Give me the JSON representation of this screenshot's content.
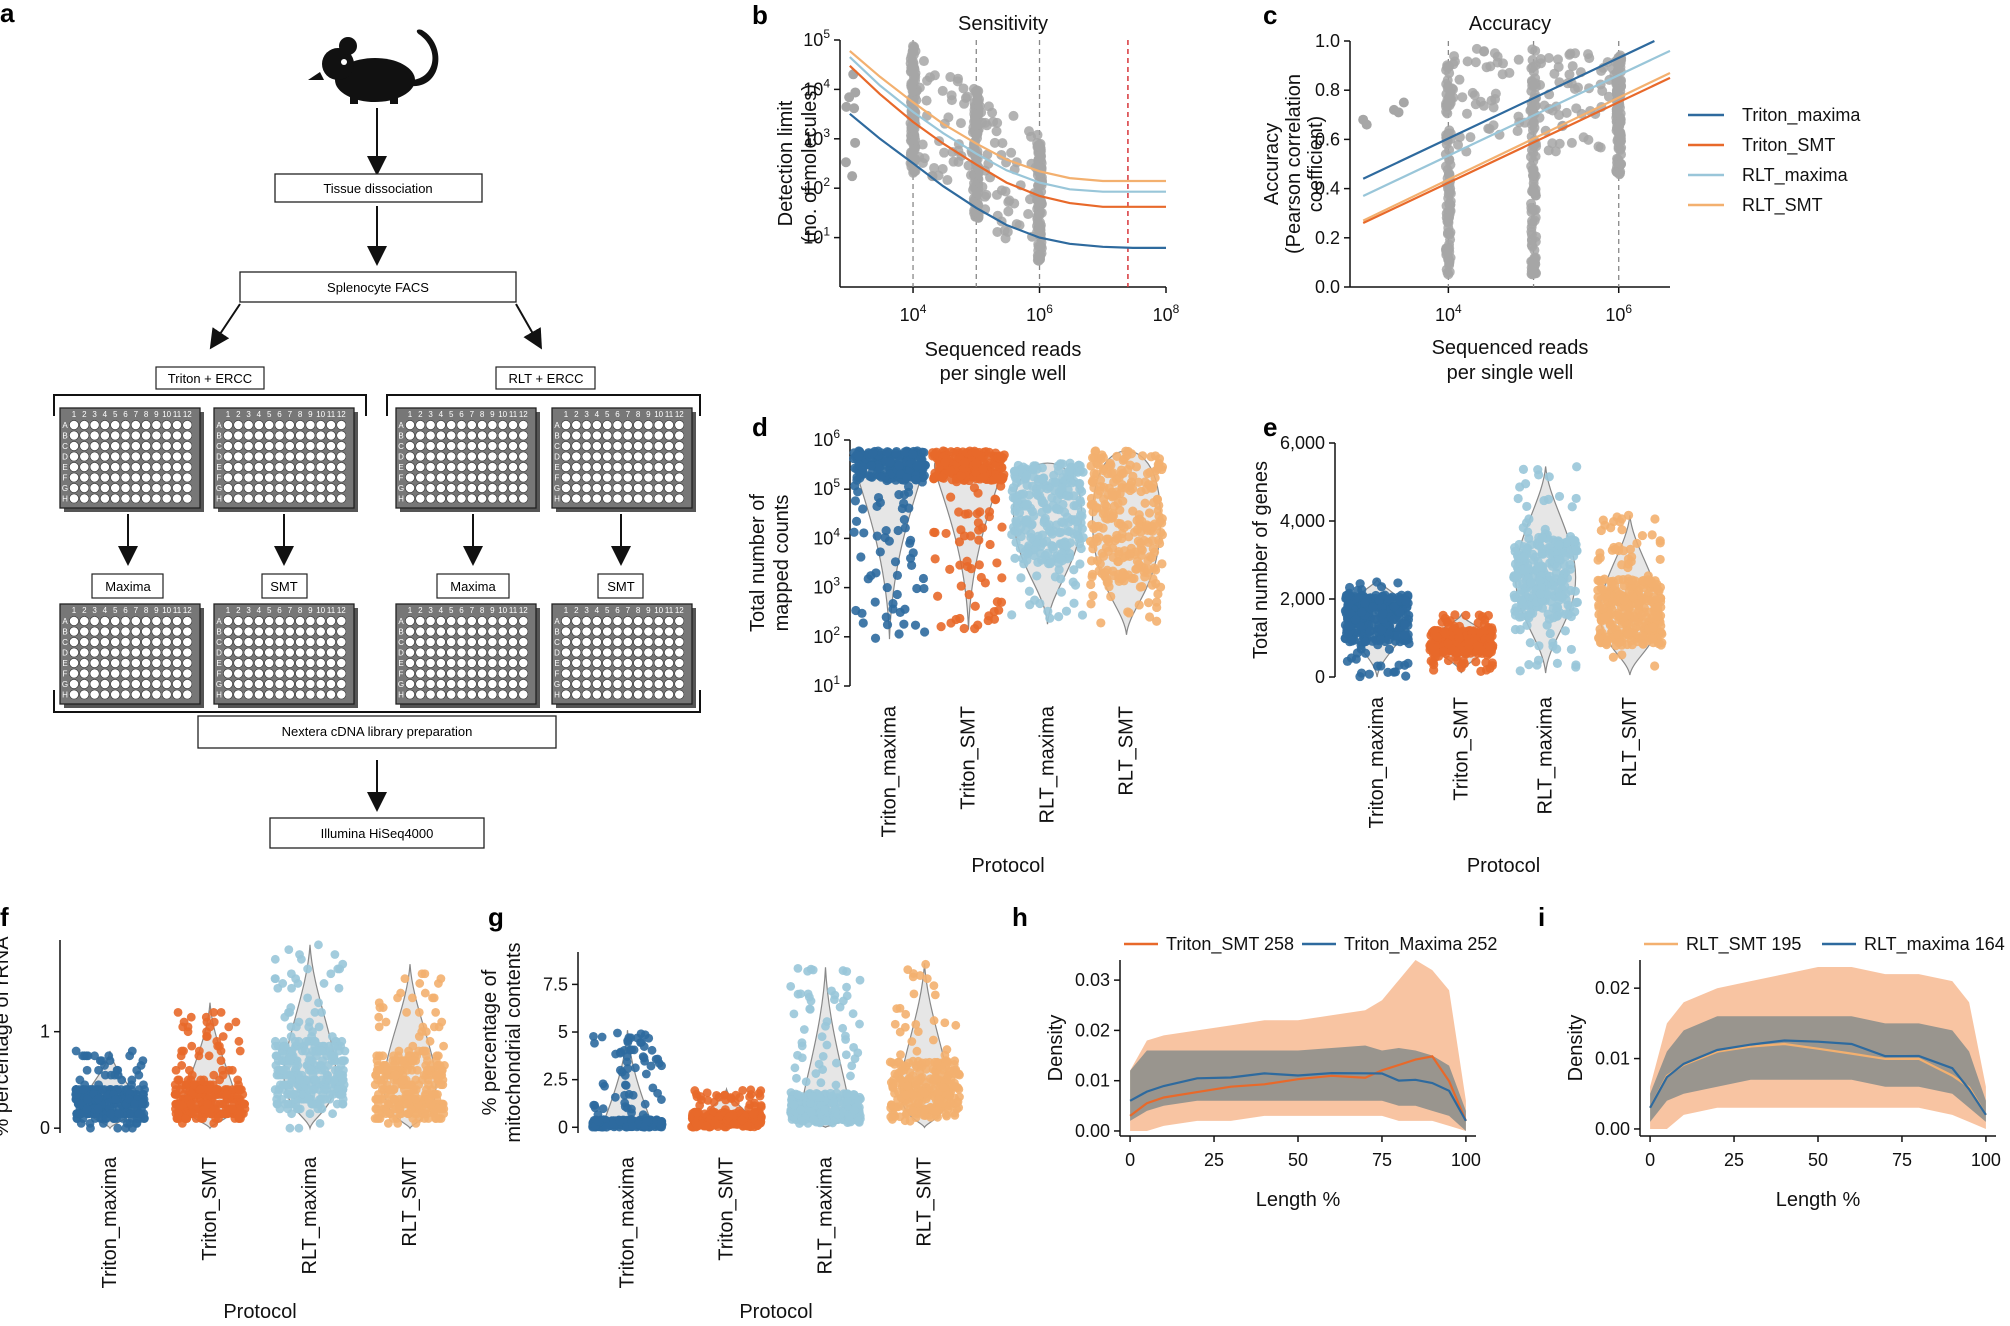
{
  "figure": {
    "panel_labels": {
      "a": "a",
      "b": "b",
      "c": "c",
      "d": "d",
      "e": "e",
      "f": "f",
      "g": "g",
      "h": "h",
      "i": "i"
    }
  },
  "workflow": {
    "steps": {
      "dissociation": "Tissue dissociation",
      "facs": "Splenocyte FACS",
      "triton": "Triton + ERCC",
      "rlt": "RLT + ERCC",
      "maxima": "Maxima",
      "smt": "SMT",
      "nextera": "Nextera cDNA library preparation",
      "hiseq": "Illumina HiSeq4000"
    },
    "plate_rows": [
      "A",
      "B",
      "C",
      "D",
      "E",
      "F",
      "G",
      "H"
    ],
    "plate_cols": [
      "1",
      "2",
      "3",
      "4",
      "5",
      "6",
      "7",
      "8",
      "9",
      "10",
      "11",
      "12"
    ]
  },
  "colors": {
    "Triton_maxima": "#2e6a9e",
    "Triton_SMT": "#e8692a",
    "RLT_maxima": "#99c6d9",
    "RLT_SMT": "#f3b06f",
    "grey_points": "#a6a6a6",
    "red_line": "#d8363a"
  },
  "chart_data": [
    {
      "id": "b",
      "type": "scatter",
      "title": "Sensitivity",
      "xlabel": [
        "Sequenced reads",
        "per single well"
      ],
      "ylabel": [
        "Detection limit",
        "(no. of molecules)"
      ],
      "x_scale": "log",
      "y_scale": "log",
      "xlim": [
        700,
        100000000
      ],
      "ylim": [
        1,
        100000
      ],
      "xticks": [
        {
          "v": 10000,
          "m": "10",
          "e": "4"
        },
        {
          "v": 1000000,
          "m": "10",
          "e": "6"
        },
        {
          "v": 100000000,
          "m": "10",
          "e": "8"
        }
      ],
      "yticks": [
        {
          "v": 10,
          "m": "10",
          "e": "1"
        },
        {
          "v": 100,
          "m": "10",
          "e": "2"
        },
        {
          "v": 1000,
          "m": "10",
          "e": "3"
        },
        {
          "v": 10000,
          "m": "10",
          "e": "4"
        },
        {
          "v": 100000,
          "m": "10",
          "e": "5"
        }
      ],
      "vlines": [
        10000,
        100000,
        1000000
      ],
      "red_vline": 25000000,
      "series": [
        {
          "name": "Triton_maxima",
          "x": [
            1000,
            3000,
            10000,
            30000,
            100000,
            300000,
            1000000,
            3000000,
            10000000,
            30000000,
            100000000
          ],
          "y": [
            3200,
            1000,
            320,
            110,
            40,
            18,
            10,
            7.5,
            6.5,
            6.2,
            6.2
          ]
        },
        {
          "name": "Triton_SMT",
          "x": [
            1000,
            3000,
            10000,
            30000,
            100000,
            300000,
            1000000,
            3000000,
            10000000,
            30000000,
            100000000
          ],
          "y": [
            30000,
            8000,
            2200,
            800,
            300,
            130,
            70,
            50,
            42,
            42,
            42
          ]
        },
        {
          "name": "RLT_maxima",
          "x": [
            1000,
            3000,
            10000,
            30000,
            100000,
            300000,
            1000000,
            3000000,
            10000000,
            30000000,
            100000000
          ],
          "y": [
            45000,
            12000,
            3500,
            1300,
            500,
            230,
            130,
            95,
            85,
            85,
            85
          ]
        },
        {
          "name": "RLT_SMT",
          "x": [
            1000,
            3000,
            10000,
            30000,
            100000,
            300000,
            1000000,
            3000000,
            10000000,
            30000000,
            100000000
          ],
          "y": [
            60000,
            18000,
            5500,
            2000,
            800,
            380,
            220,
            160,
            140,
            140,
            140
          ]
        }
      ]
    },
    {
      "id": "c",
      "type": "scatter",
      "title": "Accuracy",
      "xlabel": [
        "Sequenced reads",
        "per single well"
      ],
      "ylabel": [
        "Accuracy",
        "(Pearson correlation",
        "coefficient)"
      ],
      "x_scale": "log",
      "xlim": [
        700,
        4000000
      ],
      "ylim": [
        0,
        1.0
      ],
      "xticks": [
        {
          "v": 10000,
          "m": "10",
          "e": "4"
        },
        {
          "v": 1000000,
          "m": "10",
          "e": "6"
        }
      ],
      "yticks": [
        0.0,
        0.2,
        0.4,
        0.6,
        0.8,
        1.0
      ],
      "ytick_labels": [
        "0.0",
        "0.2",
        "0.4",
        "0.6",
        "0.8",
        "1.0"
      ],
      "vlines": [
        10000,
        100000,
        1000000
      ],
      "series": [
        {
          "name": "Triton_maxima",
          "x": [
            1000,
            4000000
          ],
          "y": [
            0.44,
            1.03
          ]
        },
        {
          "name": "RLT_maxima",
          "x": [
            1000,
            4000000
          ],
          "y": [
            0.37,
            0.96
          ]
        },
        {
          "name": "RLT_SMT",
          "x": [
            1000,
            4000000
          ],
          "y": [
            0.27,
            0.87
          ]
        },
        {
          "name": "Triton_SMT",
          "x": [
            1000,
            4000000
          ],
          "y": [
            0.26,
            0.85
          ]
        }
      ],
      "legend": [
        "Triton_maxima",
        "Triton_SMT",
        "RLT_maxima",
        "RLT_SMT"
      ]
    },
    {
      "id": "d",
      "type": "violin",
      "ylabel": [
        "Total number of",
        "mapped counts"
      ],
      "xlabel": "Protocol",
      "y_scale": "log",
      "ylim": [
        10,
        1000000
      ],
      "yticks": [
        {
          "v": 10,
          "m": "10",
          "e": "1"
        },
        {
          "v": 100,
          "m": "10",
          "e": "2"
        },
        {
          "v": 1000,
          "m": "10",
          "e": "3"
        },
        {
          "v": 10000,
          "m": "10",
          "e": "4"
        },
        {
          "v": 100000,
          "m": "10",
          "e": "5"
        },
        {
          "v": 1000000,
          "m": "10",
          "e": "6"
        }
      ],
      "categories": [
        "Triton_maxima",
        "Triton_SMT",
        "RLT_maxima",
        "RLT_SMT"
      ],
      "ranges": [
        [
          90,
          600000
        ],
        [
          140,
          600000
        ],
        [
          180,
          340000
        ],
        [
          110,
          600000
        ]
      ],
      "bulk": [
        [
          150000,
          600000
        ],
        [
          150000,
          600000
        ],
        [
          3000,
          340000
        ],
        [
          1000,
          600000
        ]
      ]
    },
    {
      "id": "e",
      "type": "violin",
      "ylabel": "Total number of genes",
      "xlabel": "Protocol",
      "ylim": [
        0,
        6000
      ],
      "yticks": [
        0,
        2000,
        4000,
        6000
      ],
      "ytick_labels": [
        "0",
        "2,000",
        "4,000",
        "6,000"
      ],
      "categories": [
        "Triton_maxima",
        "Triton_SMT",
        "RLT_maxima",
        "RLT_SMT"
      ],
      "ranges": [
        [
          0,
          2500
        ],
        [
          100,
          1600
        ],
        [
          100,
          5400
        ],
        [
          50,
          4150
        ]
      ],
      "bulk": [
        [
          900,
          2100
        ],
        [
          600,
          1200
        ],
        [
          1500,
          3600
        ],
        [
          800,
          2500
        ]
      ]
    },
    {
      "id": "f",
      "type": "violin",
      "ylabel": "% percentage of rRNA",
      "xlabel": "Protocol",
      "ylim": [
        -0.05,
        1.95
      ],
      "yticks": [
        0,
        1
      ],
      "ytick_labels": [
        "0",
        "1"
      ],
      "categories": [
        "Triton_maxima",
        "Triton_SMT",
        "RLT_maxima",
        "RLT_SMT"
      ],
      "ranges": [
        [
          0,
          0.8
        ],
        [
          0,
          1.3
        ],
        [
          0,
          1.9
        ],
        [
          0,
          1.7
        ]
      ],
      "bulk": [
        [
          0.1,
          0.4
        ],
        [
          0.1,
          0.45
        ],
        [
          0.2,
          0.9
        ],
        [
          0.1,
          0.8
        ]
      ]
    },
    {
      "id": "g",
      "type": "violin",
      "ylabel": [
        "% percentage of",
        "mitochondrial contents"
      ],
      "xlabel": "Protocol",
      "ylim": [
        -0.3,
        9.2
      ],
      "yticks": [
        0,
        2.5,
        5,
        7.5
      ],
      "ytick_labels": [
        "0",
        "2.5",
        "5",
        "7.5"
      ],
      "categories": [
        "Triton_maxima",
        "Triton_SMT",
        "RLT_maxima",
        "RLT_SMT"
      ],
      "ranges": [
        [
          0,
          5.1
        ],
        [
          0,
          2
        ],
        [
          0,
          8.4
        ],
        [
          0,
          8.6
        ]
      ],
      "bulk": [
        [
          0,
          0.4
        ],
        [
          0,
          0.8
        ],
        [
          0.2,
          1.8
        ],
        [
          0.5,
          3.5
        ]
      ]
    },
    {
      "id": "h",
      "type": "line",
      "xlabel": "Length %",
      "ylabel": "Density",
      "xlim": [
        -3,
        103
      ],
      "ylim": [
        -0.001,
        0.034
      ],
      "xticks": [
        0,
        25,
        50,
        75,
        100
      ],
      "yticks": [
        0,
        0.01,
        0.02,
        0.03
      ],
      "ytick_labels": [
        "0.00",
        "0.01",
        "0.02",
        "0.03"
      ],
      "legend": [
        "Triton_SMT 258",
        "Triton_Maxima 252"
      ],
      "series": [
        {
          "name": "Triton_SMT 258",
          "color_key": "Triton_SMT",
          "x": [
            0,
            5,
            10,
            20,
            30,
            40,
            50,
            60,
            70,
            75,
            80,
            85,
            90,
            95,
            100
          ],
          "y": [
            0.003,
            0.006,
            0.007,
            0.008,
            0.009,
            0.0095,
            0.01,
            0.0105,
            0.011,
            0.012,
            0.013,
            0.0145,
            0.015,
            0.01,
            0.002
          ],
          "band_low": [
            0,
            0,
            0.001,
            0.002,
            0.002,
            0.003,
            0.003,
            0.003,
            0.003,
            0.003,
            0.002,
            0.002,
            0.002,
            0.001,
            0
          ],
          "band_high": [
            0.012,
            0.018,
            0.019,
            0.02,
            0.021,
            0.022,
            0.022,
            0.023,
            0.024,
            0.026,
            0.03,
            0.034,
            0.032,
            0.028,
            0.006
          ]
        },
        {
          "name": "Triton_Maxima 252",
          "color_key": "Triton_maxima",
          "x": [
            0,
            5,
            10,
            20,
            30,
            40,
            50,
            60,
            70,
            75,
            80,
            85,
            90,
            95,
            100
          ],
          "y": [
            0.006,
            0.008,
            0.0095,
            0.011,
            0.011,
            0.0115,
            0.011,
            0.0115,
            0.0115,
            0.011,
            0.0105,
            0.01,
            0.0095,
            0.008,
            0.002
          ],
          "band_low": [
            0.002,
            0.004,
            0.005,
            0.006,
            0.006,
            0.006,
            0.006,
            0.006,
            0.006,
            0.006,
            0.005,
            0.005,
            0.004,
            0.003,
            0
          ],
          "band_high": [
            0.012,
            0.016,
            0.016,
            0.016,
            0.016,
            0.016,
            0.016,
            0.0165,
            0.017,
            0.016,
            0.0165,
            0.016,
            0.015,
            0.013,
            0.004
          ]
        }
      ]
    },
    {
      "id": "i",
      "type": "line",
      "xlabel": "Length %",
      "ylabel": "Density",
      "xlim": [
        -3,
        103
      ],
      "ylim": [
        -0.001,
        0.024
      ],
      "xticks": [
        0,
        25,
        50,
        75,
        100
      ],
      "yticks": [
        0,
        0.01,
        0.02
      ],
      "ytick_labels": [
        "0.00",
        "0.01",
        "0.02"
      ],
      "legend": [
        "RLT_SMT 195",
        "RLT_maxima 164"
      ],
      "series": [
        {
          "name": "RLT_SMT 195",
          "color_key": "RLT_SMT",
          "x": [
            0,
            5,
            10,
            20,
            30,
            40,
            50,
            60,
            70,
            80,
            90,
            95,
            100
          ],
          "y": [
            0.003,
            0.007,
            0.009,
            0.011,
            0.0115,
            0.0115,
            0.0115,
            0.011,
            0.0105,
            0.0095,
            0.008,
            0.006,
            0.002
          ],
          "band_low": [
            0,
            0,
            0.002,
            0.003,
            0.003,
            0.003,
            0.003,
            0.003,
            0.003,
            0.003,
            0.002,
            0.001,
            0
          ],
          "band_high": [
            0.006,
            0.015,
            0.018,
            0.02,
            0.021,
            0.022,
            0.023,
            0.023,
            0.022,
            0.022,
            0.021,
            0.018,
            0.006
          ]
        },
        {
          "name": "RLT_maxima 164",
          "color_key": "RLT_maxima_dark",
          "x": [
            0,
            5,
            10,
            20,
            30,
            40,
            50,
            60,
            70,
            80,
            90,
            95,
            100
          ],
          "y": [
            0.003,
            0.0075,
            0.0095,
            0.0115,
            0.012,
            0.012,
            0.0118,
            0.0115,
            0.0108,
            0.0098,
            0.0085,
            0.006,
            0.002
          ],
          "band_low": [
            0.001,
            0.004,
            0.005,
            0.006,
            0.007,
            0.007,
            0.007,
            0.007,
            0.006,
            0.006,
            0.005,
            0.003,
            0.001
          ],
          "band_high": [
            0.005,
            0.011,
            0.014,
            0.016,
            0.016,
            0.016,
            0.016,
            0.016,
            0.015,
            0.015,
            0.014,
            0.011,
            0.004
          ]
        }
      ]
    }
  ]
}
